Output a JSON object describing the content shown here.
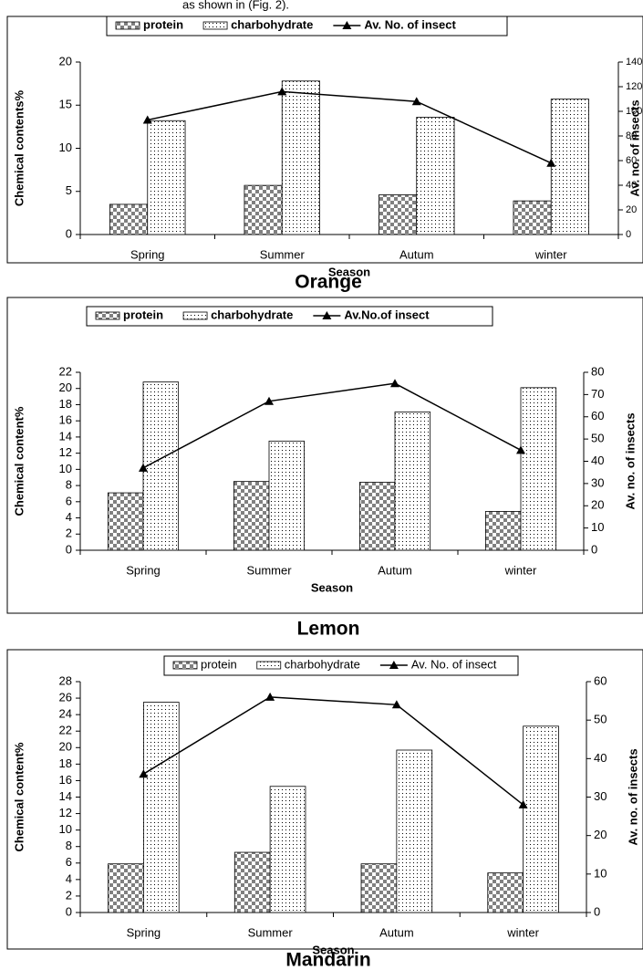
{
  "intro_text": "as shown in (Fig. 2).",
  "chart_data": [
    {
      "type": "bar",
      "title": "Orange",
      "xlabel": "Season",
      "ylabel": "Chemical contents%",
      "y2label": "Av. no. of insects",
      "categories": [
        "Spring",
        "Summer",
        "Autum",
        "winter"
      ],
      "series": [
        {
          "name": "protein",
          "color": "#808080",
          "values": [
            3.5,
            5.7,
            4.6,
            3.9
          ]
        },
        {
          "name": "charbohydrate",
          "color": "#ffffff",
          "values": [
            13.2,
            17.8,
            13.6,
            15.7
          ]
        },
        {
          "name": "Av. No. of insect",
          "color": "#000000",
          "axis": "y2",
          "type": "line",
          "values": [
            93,
            116,
            108,
            58
          ]
        }
      ],
      "ylim": [
        0,
        20
      ],
      "yticks": [
        0,
        5,
        10,
        15,
        20
      ],
      "y2lim": [
        0,
        140
      ],
      "y2ticks": [
        0,
        20,
        40,
        60,
        80,
        100,
        120,
        140
      ],
      "legend": "top",
      "legend_bold": true
    },
    {
      "type": "bar",
      "title": "Lemon",
      "xlabel": "Season",
      "ylabel": "Chemical content%",
      "y2label": "Av. no. of insects",
      "categories": [
        "Spring",
        "Summer",
        "Autum",
        "winter"
      ],
      "series": [
        {
          "name": "protein",
          "color": "#808080",
          "values": [
            7.1,
            8.5,
            8.4,
            4.8
          ]
        },
        {
          "name": "charbohydrate",
          "color": "#ffffff",
          "values": [
            20.8,
            13.5,
            17.1,
            20.1
          ]
        },
        {
          "name": "Av.No.of insect",
          "color": "#000000",
          "axis": "y2",
          "type": "line",
          "values": [
            37,
            67,
            75,
            45
          ]
        }
      ],
      "ylim": [
        0,
        22
      ],
      "yticks": [
        0,
        2,
        4,
        6,
        8,
        10,
        12,
        14,
        16,
        18,
        20,
        22
      ],
      "y2lim": [
        0,
        80
      ],
      "y2ticks": [
        0,
        10,
        20,
        30,
        40,
        50,
        60,
        70,
        80
      ],
      "legend": "top",
      "legend_bold": true
    },
    {
      "type": "bar",
      "title": "Mandarin",
      "xlabel": "Season",
      "ylabel": "Chemical content%",
      "y2label": "Av. no. of insects",
      "categories": [
        "Spring",
        "Summer",
        "Autum",
        "winter"
      ],
      "series": [
        {
          "name": "protein",
          "color": "#808080",
          "values": [
            5.9,
            7.3,
            5.9,
            4.8
          ]
        },
        {
          "name": "charbohydrate",
          "color": "#ffffff",
          "values": [
            25.5,
            15.3,
            19.7,
            22.6
          ]
        },
        {
          "name": "Av. No. of insect",
          "color": "#000000",
          "axis": "y2",
          "type": "line",
          "values": [
            36,
            56,
            54,
            28
          ]
        }
      ],
      "ylim": [
        0,
        28
      ],
      "yticks": [
        0,
        2,
        4,
        6,
        8,
        10,
        12,
        14,
        16,
        18,
        20,
        22,
        24,
        26,
        28
      ],
      "y2lim": [
        0,
        60
      ],
      "y2ticks": [
        0,
        10,
        20,
        30,
        40,
        50,
        60
      ],
      "legend": "top",
      "legend_bold": false
    }
  ]
}
